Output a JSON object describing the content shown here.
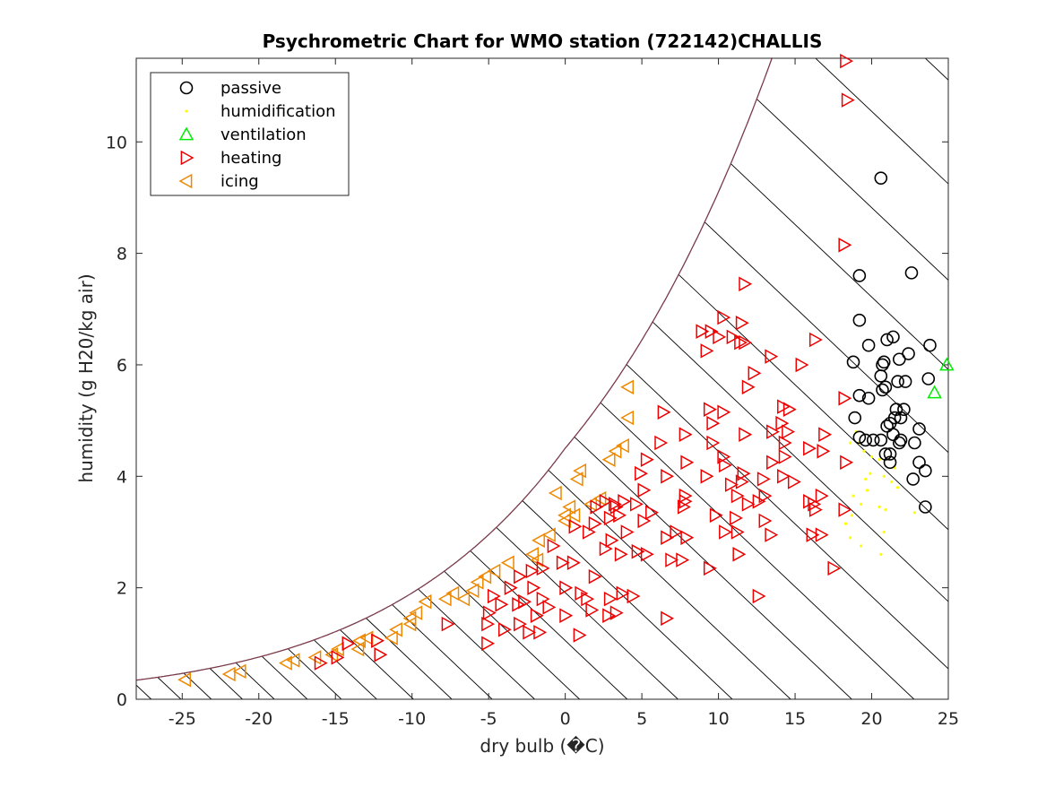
{
  "chart_data": {
    "type": "scatter",
    "title": "Psychrometric Chart for WMO station (722142)CHALLIS",
    "xlabel": "dry bulb (�C)",
    "ylabel": "humidity (g H20/kg air)",
    "xlim": [
      -28,
      25
    ],
    "ylim": [
      0,
      11.5
    ],
    "x_ticks": [
      -25,
      -20,
      -15,
      -10,
      -5,
      0,
      5,
      10,
      15,
      20,
      25
    ],
    "y_ticks": [
      0,
      2,
      4,
      6,
      8,
      10
    ],
    "grid": false,
    "legend_position": "top-left",
    "saturation_curve_color": "#7a3a4a",
    "hatch_color": "#000000",
    "series": [
      {
        "name": "passive",
        "marker": "circle",
        "color": "#000000",
        "points": [
          [
            20.6,
            9.35
          ],
          [
            22.6,
            7.65
          ],
          [
            19.2,
            7.6
          ],
          [
            19.2,
            6.8
          ],
          [
            21.0,
            6.45
          ],
          [
            21.4,
            6.5
          ],
          [
            19.8,
            6.35
          ],
          [
            23.8,
            6.35
          ],
          [
            22.4,
            6.2
          ],
          [
            21.8,
            6.1
          ],
          [
            18.8,
            6.05
          ],
          [
            20.7,
            6.0
          ],
          [
            20.8,
            6.05
          ],
          [
            20.6,
            5.8
          ],
          [
            20.9,
            5.6
          ],
          [
            21.7,
            5.7
          ],
          [
            22.2,
            5.7
          ],
          [
            23.7,
            5.75
          ],
          [
            20.7,
            5.55
          ],
          [
            19.2,
            5.45
          ],
          [
            19.8,
            5.4
          ],
          [
            21.6,
            5.2
          ],
          [
            21.9,
            5.05
          ],
          [
            22.1,
            5.2
          ],
          [
            21.5,
            5.05
          ],
          [
            18.9,
            5.05
          ],
          [
            21.2,
            4.95
          ],
          [
            21.0,
            4.9
          ],
          [
            23.1,
            4.85
          ],
          [
            19.2,
            4.7
          ],
          [
            21.4,
            4.75
          ],
          [
            19.6,
            4.65
          ],
          [
            20.6,
            4.65
          ],
          [
            20.1,
            4.65
          ],
          [
            21.9,
            4.65
          ],
          [
            22.8,
            4.6
          ],
          [
            21.8,
            4.6
          ],
          [
            20.9,
            4.4
          ],
          [
            21.2,
            4.4
          ],
          [
            21.2,
            4.25
          ],
          [
            23.1,
            4.25
          ],
          [
            23.5,
            4.1
          ],
          [
            22.7,
            3.95
          ],
          [
            23.5,
            3.45
          ]
        ]
      },
      {
        "name": "humidification",
        "marker": "dot",
        "color": "#ffff00",
        "points": [
          [
            19.0,
            4.8
          ],
          [
            19.2,
            4.6
          ],
          [
            18.6,
            4.6
          ],
          [
            19.5,
            4.45
          ],
          [
            20.0,
            4.35
          ],
          [
            20.5,
            4.3
          ],
          [
            21.5,
            4.15
          ],
          [
            19.9,
            4.05
          ],
          [
            20.8,
            4.0
          ],
          [
            19.6,
            3.95
          ],
          [
            21.3,
            3.9
          ],
          [
            21.7,
            3.8
          ],
          [
            19.7,
            3.75
          ],
          [
            18.8,
            3.65
          ],
          [
            19.3,
            3.5
          ],
          [
            20.5,
            3.45
          ],
          [
            20.9,
            3.4
          ],
          [
            22.8,
            3.35
          ],
          [
            18.7,
            3.3
          ],
          [
            18.3,
            3.15
          ],
          [
            20.8,
            3.0
          ],
          [
            18.6,
            2.9
          ],
          [
            19.3,
            2.75
          ],
          [
            20.6,
            2.6
          ]
        ]
      },
      {
        "name": "ventilation",
        "marker": "triangle-up",
        "color": "#00ee00",
        "points": [
          [
            24.9,
            6.0
          ],
          [
            24.1,
            5.5
          ]
        ]
      },
      {
        "name": "heating",
        "marker": "triangle-right",
        "color": "#ee0000",
        "points": [
          [
            18.3,
            11.45
          ],
          [
            18.4,
            10.75
          ],
          [
            18.2,
            8.15
          ],
          [
            11.7,
            7.45
          ],
          [
            10.3,
            6.85
          ],
          [
            11.5,
            6.75
          ],
          [
            8.9,
            6.6
          ],
          [
            9.5,
            6.6
          ],
          [
            10.0,
            6.5
          ],
          [
            10.9,
            6.5
          ],
          [
            11.4,
            6.4
          ],
          [
            11.7,
            6.4
          ],
          [
            16.3,
            6.45
          ],
          [
            9.2,
            6.25
          ],
          [
            13.4,
            6.15
          ],
          [
            15.4,
            6.0
          ],
          [
            12.3,
            5.85
          ],
          [
            11.9,
            5.6
          ],
          [
            18.2,
            5.4
          ],
          [
            14.2,
            5.25
          ],
          [
            14.6,
            5.2
          ],
          [
            9.4,
            5.2
          ],
          [
            10.3,
            5.15
          ],
          [
            6.4,
            5.15
          ],
          [
            14.1,
            4.95
          ],
          [
            9.6,
            4.95
          ],
          [
            13.5,
            4.8
          ],
          [
            11.7,
            4.75
          ],
          [
            7.8,
            4.75
          ],
          [
            14.5,
            4.8
          ],
          [
            16.9,
            4.75
          ],
          [
            14.3,
            4.6
          ],
          [
            6.2,
            4.6
          ],
          [
            9.6,
            4.6
          ],
          [
            15.9,
            4.5
          ],
          [
            16.8,
            4.45
          ],
          [
            14.3,
            4.35
          ],
          [
            5.3,
            4.3
          ],
          [
            10.3,
            4.35
          ],
          [
            10.4,
            4.2
          ],
          [
            13.5,
            4.25
          ],
          [
            18.3,
            4.25
          ],
          [
            7.9,
            4.25
          ],
          [
            11.6,
            4.05
          ],
          [
            14.2,
            4.0
          ],
          [
            12.9,
            3.95
          ],
          [
            14.9,
            3.9
          ],
          [
            4.9,
            4.05
          ],
          [
            6.6,
            4.0
          ],
          [
            9.2,
            4.0
          ],
          [
            11.5,
            3.9
          ],
          [
            10.8,
            3.85
          ],
          [
            5.1,
            3.75
          ],
          [
            11.2,
            3.65
          ],
          [
            13.0,
            3.65
          ],
          [
            15.9,
            3.55
          ],
          [
            16.7,
            3.65
          ],
          [
            7.8,
            3.65
          ],
          [
            7.8,
            3.55
          ],
          [
            3.8,
            3.55
          ],
          [
            2.6,
            3.55
          ],
          [
            3.2,
            3.5
          ],
          [
            4.6,
            3.5
          ],
          [
            12.6,
            3.55
          ],
          [
            11.9,
            3.5
          ],
          [
            16.2,
            3.5
          ],
          [
            7.7,
            3.45
          ],
          [
            3.3,
            3.45
          ],
          [
            2.0,
            3.45
          ],
          [
            16.3,
            3.4
          ],
          [
            18.2,
            3.4
          ],
          [
            5.6,
            3.35
          ],
          [
            5.1,
            3.2
          ],
          [
            9.8,
            3.3
          ],
          [
            11.1,
            3.25
          ],
          [
            13.0,
            3.2
          ],
          [
            3.5,
            3.3
          ],
          [
            2.9,
            3.25
          ],
          [
            1.9,
            3.15
          ],
          [
            0.6,
            3.1
          ],
          [
            1.5,
            3.0
          ],
          [
            4.0,
            3.0
          ],
          [
            7.2,
            3.0
          ],
          [
            10.4,
            3.0
          ],
          [
            11.2,
            3.0
          ],
          [
            13.4,
            2.95
          ],
          [
            16.1,
            2.95
          ],
          [
            16.7,
            2.95
          ],
          [
            6.6,
            2.9
          ],
          [
            7.9,
            2.9
          ],
          [
            3.0,
            2.85
          ],
          [
            -0.8,
            2.75
          ],
          [
            2.6,
            2.7
          ],
          [
            4.7,
            2.65
          ],
          [
            5.3,
            2.6
          ],
          [
            11.3,
            2.6
          ],
          [
            3.6,
            2.6
          ],
          [
            6.9,
            2.5
          ],
          [
            7.6,
            2.5
          ],
          [
            0.5,
            2.45
          ],
          [
            -0.2,
            2.45
          ],
          [
            -1.5,
            2.35
          ],
          [
            -2.2,
            2.3
          ],
          [
            -3.0,
            2.2
          ],
          [
            1.9,
            2.2
          ],
          [
            -3.6,
            2.0
          ],
          [
            -2.1,
            2.0
          ],
          [
            0.0,
            2.0
          ],
          [
            1.0,
            1.9
          ],
          [
            3.7,
            1.9
          ],
          [
            4.4,
            1.85
          ],
          [
            -4.7,
            1.85
          ],
          [
            -1.5,
            1.8
          ],
          [
            12.6,
            1.85
          ],
          [
            2.9,
            1.8
          ],
          [
            1.4,
            1.8
          ],
          [
            -2.7,
            1.75
          ],
          [
            -3.1,
            1.7
          ],
          [
            -4.2,
            1.7
          ],
          [
            -1.1,
            1.65
          ],
          [
            1.7,
            1.6
          ],
          [
            3.3,
            1.55
          ],
          [
            -5.0,
            1.55
          ],
          [
            -1.9,
            1.5
          ],
          [
            0.0,
            1.5
          ],
          [
            2.8,
            1.5
          ],
          [
            6.6,
            1.45
          ],
          [
            -3.0,
            1.35
          ],
          [
            -5.1,
            1.35
          ],
          [
            -4.0,
            1.25
          ],
          [
            -2.4,
            1.2
          ],
          [
            -1.7,
            1.2
          ],
          [
            -5.1,
            1.0
          ],
          [
            -7.7,
            1.35
          ],
          [
            -12.3,
            1.05
          ],
          [
            -14.2,
            1.0
          ],
          [
            -14.9,
            0.75
          ],
          [
            -16.0,
            0.65
          ],
          [
            -12.1,
            0.8
          ],
          [
            0.9,
            1.15
          ],
          [
            17.5,
            2.35
          ],
          [
            9.4,
            2.35
          ]
        ]
      },
      {
        "name": "icing",
        "marker": "triangle-left",
        "color": "#ee8800",
        "points": [
          [
            4.1,
            5.6
          ],
          [
            4.1,
            5.05
          ],
          [
            3.8,
            4.55
          ],
          [
            3.3,
            4.45
          ],
          [
            2.9,
            4.3
          ],
          [
            1.0,
            4.1
          ],
          [
            0.8,
            3.95
          ],
          [
            -0.6,
            3.7
          ],
          [
            1.7,
            3.5
          ],
          [
            2.3,
            3.6
          ],
          [
            0.3,
            3.45
          ],
          [
            0.6,
            3.3
          ],
          [
            0.0,
            3.3
          ],
          [
            0.0,
            3.2
          ],
          [
            -1.0,
            2.95
          ],
          [
            -1.7,
            2.85
          ],
          [
            -2.1,
            2.6
          ],
          [
            -1.8,
            2.5
          ],
          [
            -3.7,
            2.45
          ],
          [
            -4.6,
            2.3
          ],
          [
            -5.2,
            2.2
          ],
          [
            -5.7,
            2.1
          ],
          [
            -6.0,
            1.95
          ],
          [
            -7.3,
            1.9
          ],
          [
            -6.6,
            1.8
          ],
          [
            -7.8,
            1.8
          ],
          [
            -9.1,
            1.75
          ],
          [
            -9.7,
            1.55
          ],
          [
            -10.1,
            1.45
          ],
          [
            -10.1,
            1.35
          ],
          [
            -11.0,
            1.25
          ],
          [
            -11.3,
            1.1
          ],
          [
            -12.9,
            1.1
          ],
          [
            -13.4,
            1.05
          ],
          [
            -13.5,
            0.9
          ],
          [
            -14.8,
            0.9
          ],
          [
            -15.2,
            0.8
          ],
          [
            -16.3,
            0.75
          ],
          [
            -17.7,
            0.7
          ],
          [
            -18.2,
            0.65
          ],
          [
            -21.2,
            0.5
          ],
          [
            -21.9,
            0.45
          ],
          [
            -24.8,
            0.35
          ]
        ]
      }
    ]
  }
}
